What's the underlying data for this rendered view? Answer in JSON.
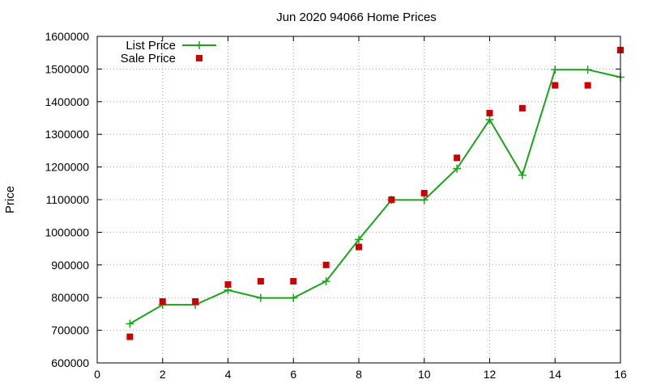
{
  "chart_data": {
    "type": "line",
    "title": "Jun 2020 94066 Home Prices",
    "xlabel": "",
    "ylabel": "Price",
    "xlim": [
      0,
      16
    ],
    "ylim": [
      600000,
      1600000
    ],
    "x_ticks": [
      0,
      2,
      4,
      6,
      8,
      10,
      12,
      14,
      16
    ],
    "y_ticks": [
      600000,
      700000,
      800000,
      900000,
      1000000,
      1100000,
      1200000,
      1300000,
      1400000,
      1500000,
      1600000
    ],
    "grid": true,
    "legend_position": "top-left",
    "series": [
      {
        "name": "List Price",
        "style": "line-with-plus-markers",
        "color": "#1aa31a",
        "x": [
          1,
          2,
          3,
          4,
          5,
          6,
          7,
          8,
          9,
          10,
          11,
          12,
          13,
          14,
          15,
          16
        ],
        "values": [
          720000,
          778000,
          778000,
          823000,
          799000,
          799000,
          850000,
          978000,
          1099000,
          1099000,
          1195000,
          1345000,
          1175000,
          1498000,
          1498000,
          1475000
        ]
      },
      {
        "name": "Sale Price",
        "style": "square-markers",
        "color": "#cc0000",
        "x": [
          1,
          2,
          3,
          4,
          5,
          6,
          7,
          8,
          9,
          10,
          11,
          12,
          13,
          14,
          15,
          16
        ],
        "values": [
          680000,
          788000,
          788000,
          840000,
          850000,
          850000,
          900000,
          955000,
          1100000,
          1120000,
          1228000,
          1365000,
          1380000,
          1450000,
          1450000,
          1558000
        ]
      }
    ]
  }
}
